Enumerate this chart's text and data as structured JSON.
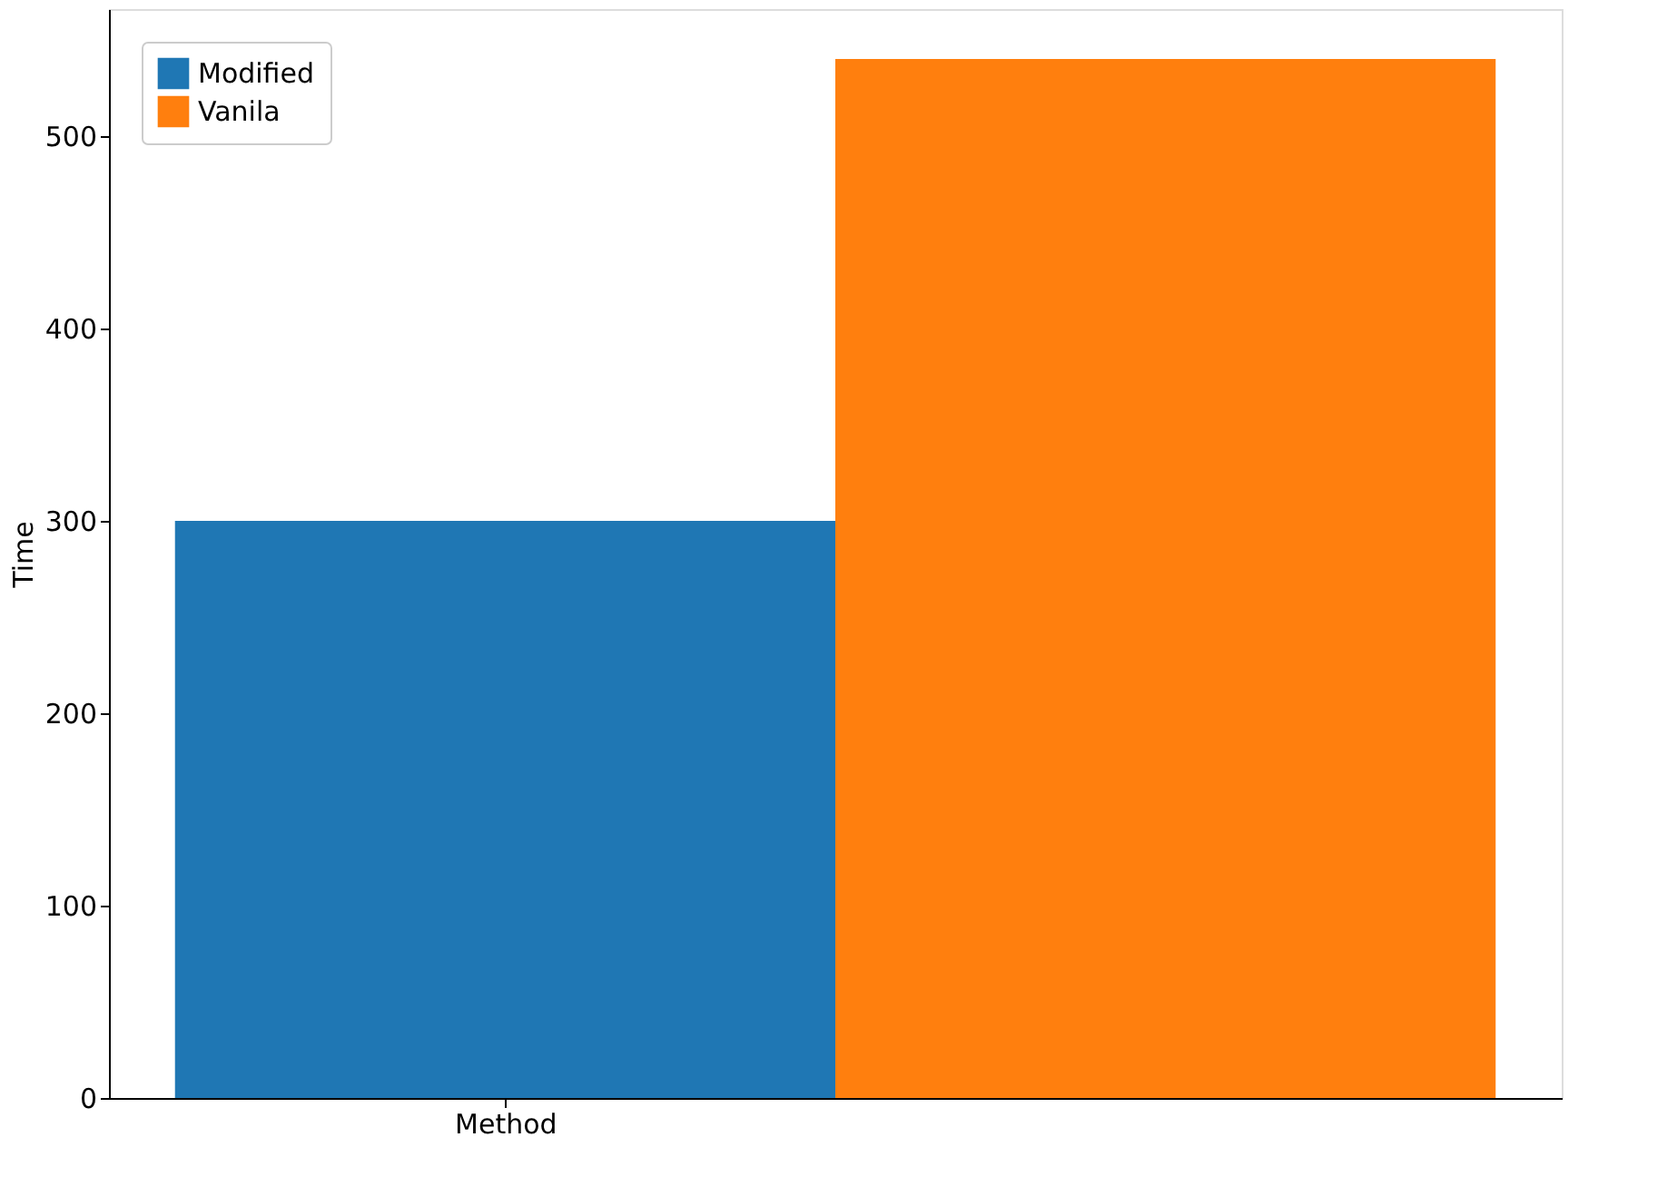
{
  "chart_data": {
    "type": "bar",
    "categories": [
      "Method"
    ],
    "ylabel": "Time",
    "series": [
      {
        "name": "Modified",
        "color": "#1f77b4",
        "values": [
          300
        ]
      },
      {
        "name": "Vanila",
        "color": "#ff7f0e",
        "values": [
          540
        ]
      }
    ],
    "ylim": [
      0,
      566
    ],
    "yticks": [
      0,
      100,
      200,
      300,
      400,
      500
    ],
    "grid": false,
    "legend": "top left"
  }
}
